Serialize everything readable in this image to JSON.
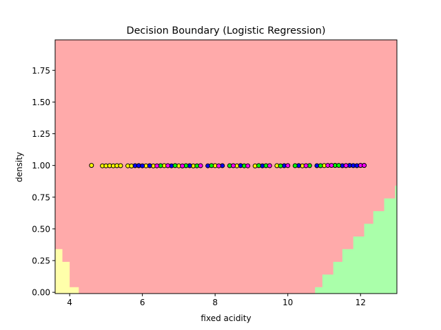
{
  "chart_data": {
    "type": "scatter",
    "title": "Decision Boundary (Logistic Regression)",
    "xlabel": "fixed acidity",
    "ylabel": "density",
    "xlim": [
      3.6,
      13.0
    ],
    "ylim": [
      -0.01,
      1.99
    ],
    "xticks": [
      4,
      6,
      8,
      10,
      12
    ],
    "xtick_labels": [
      "4",
      "6",
      "8",
      "10",
      "12"
    ],
    "yticks": [
      0.0,
      0.25,
      0.5,
      0.75,
      1.0,
      1.25,
      1.5,
      1.75
    ],
    "ytick_labels": [
      "0.00",
      "0.25",
      "0.50",
      "0.75",
      "1.00",
      "1.25",
      "1.50",
      "1.75"
    ],
    "grid": false,
    "legend": "none",
    "background_region": {
      "class": "red",
      "color": "#ffaaaa"
    },
    "decision_regions": [
      {
        "class": "yellow",
        "color": "#ffffaa",
        "corner": "bottom-left",
        "boundary": [
          [
            3.6,
            0.34
          ],
          [
            3.8,
            0.34
          ],
          [
            3.8,
            0.24
          ],
          [
            4.0,
            0.24
          ],
          [
            4.0,
            0.04
          ],
          [
            4.25,
            0.04
          ],
          [
            4.25,
            -0.01
          ]
        ]
      },
      {
        "class": "green",
        "color": "#aaffaa",
        "corner": "bottom-right",
        "boundary": [
          [
            10.75,
            -0.01
          ],
          [
            10.75,
            0.04
          ],
          [
            10.95,
            0.04
          ],
          [
            10.95,
            0.14
          ],
          [
            11.25,
            0.14
          ],
          [
            11.25,
            0.24
          ],
          [
            11.5,
            0.24
          ],
          [
            11.5,
            0.34
          ],
          [
            11.8,
            0.34
          ],
          [
            11.8,
            0.44
          ],
          [
            12.1,
            0.44
          ],
          [
            12.1,
            0.54
          ],
          [
            12.35,
            0.54
          ],
          [
            12.35,
            0.64
          ],
          [
            12.65,
            0.64
          ],
          [
            12.65,
            0.74
          ],
          [
            12.95,
            0.74
          ],
          [
            12.95,
            0.84
          ],
          [
            13.0,
            0.84
          ]
        ]
      }
    ],
    "series": [
      {
        "color": "#ffff00",
        "x": [
          4.6,
          4.9,
          5.0,
          5.1,
          5.2,
          5.3,
          5.4,
          5.6,
          5.7,
          5.9,
          6.1,
          6.3,
          6.6,
          7.0,
          7.4,
          8.0,
          8.6,
          9.1,
          9.7,
          10.4,
          11.0
        ],
        "y": [
          1.0,
          0.997,
          0.997,
          0.998,
          0.997,
          0.998,
          0.998,
          0.997,
          0.996,
          0.998,
          0.997,
          0.996,
          0.998,
          0.997,
          0.996,
          0.998,
          0.997,
          0.996,
          0.998,
          0.997,
          0.999
        ]
      },
      {
        "color": "#0000ff",
        "x": [
          5.8,
          5.9,
          6.0,
          6.2,
          6.8,
          7.3,
          7.8,
          8.2,
          8.7,
          9.3,
          9.9,
          10.3,
          10.8,
          11.3,
          11.5,
          11.7,
          11.8,
          11.9,
          12.0
        ],
        "y": [
          0.998,
          0.999,
          0.997,
          0.998,
          0.997,
          0.998,
          0.997,
          0.998,
          0.999,
          0.997,
          0.998,
          0.999,
          0.998,
          1.0,
          0.998,
          1.0,
          0.999,
          0.998,
          1.0
        ]
      },
      {
        "color": "#00ff00",
        "x": [
          6.5,
          6.9,
          7.2,
          7.5,
          7.9,
          8.4,
          8.8,
          9.2,
          9.4,
          9.8,
          10.2,
          10.6,
          10.9,
          11.3,
          11.4,
          11.6,
          12.1
        ],
        "y": [
          0.998,
          0.999,
          0.998,
          0.997,
          0.999,
          0.998,
          0.997,
          0.999,
          0.998,
          0.997,
          0.998,
          0.999,
          0.998,
          1.0,
          1.0,
          0.999,
          1.0
        ]
      },
      {
        "color": "#ff00ff",
        "x": [
          6.4,
          6.7,
          7.1,
          7.6,
          8.1,
          8.5,
          8.9,
          9.5,
          10.0,
          10.5,
          11.1,
          11.2,
          11.6,
          12.0,
          12.1
        ],
        "y": [
          0.997,
          0.998,
          0.996,
          0.998,
          0.997,
          0.998,
          0.997,
          0.998,
          0.999,
          0.998,
          1.0,
          1.0,
          0.999,
          1.0,
          1.0
        ]
      }
    ]
  }
}
